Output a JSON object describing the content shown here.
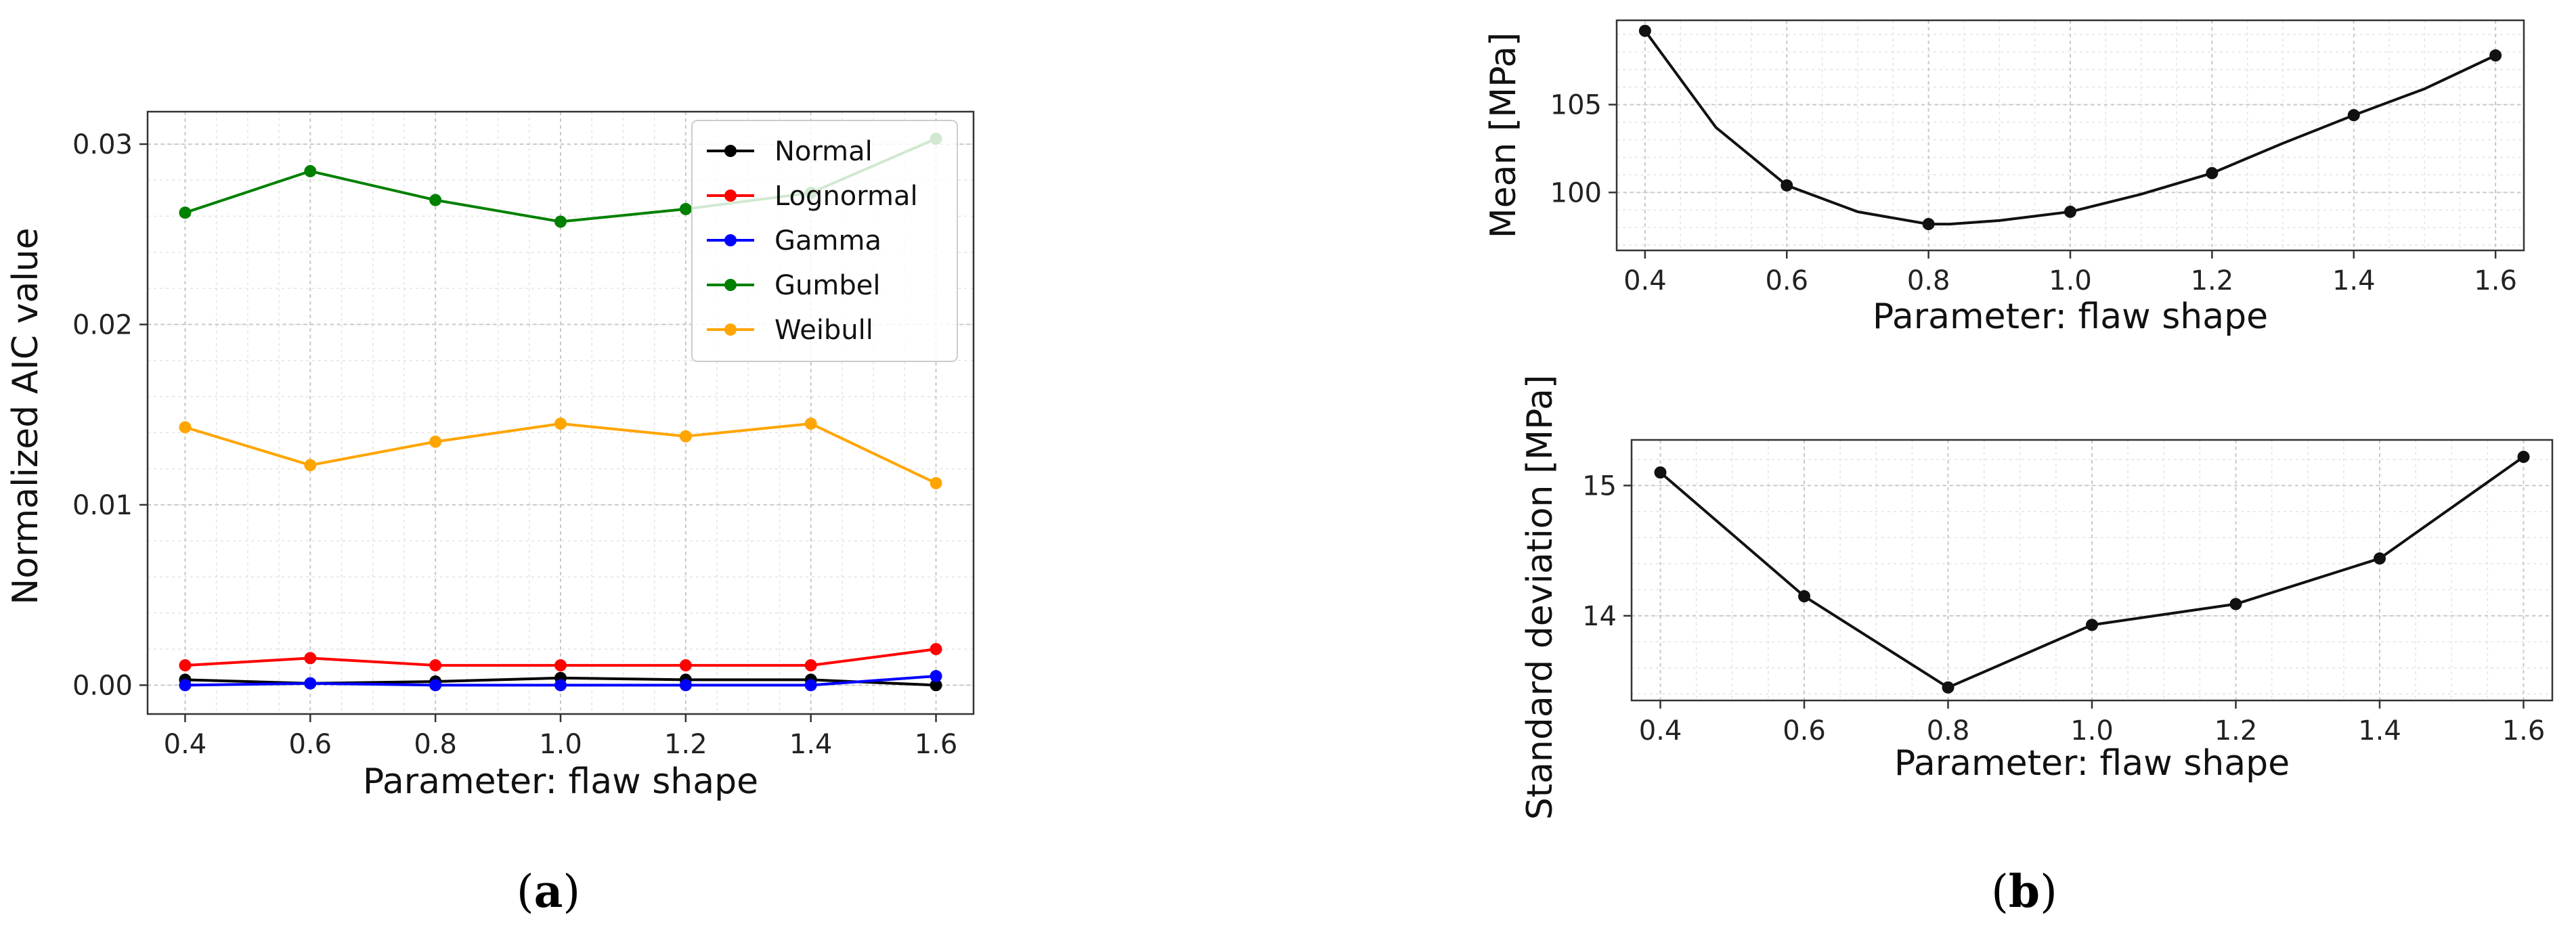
{
  "panel_labels": {
    "a": {
      "open": "(",
      "letter": "a",
      "close": ")"
    },
    "b": {
      "open": "(",
      "letter": "b",
      "close": ")"
    }
  },
  "chart_data": [
    {
      "id": "aic",
      "type": "line",
      "title": "",
      "xlabel": "Parameter: flaw shape",
      "ylabel": "Normalized AIC value",
      "x": [
        0.4,
        0.6,
        0.8,
        1.0,
        1.2,
        1.4,
        1.6
      ],
      "xlim": [
        0.34,
        1.66
      ],
      "ylim": [
        -0.0016,
        0.0318
      ],
      "xticks": [
        0.4,
        0.6,
        0.8,
        1.0,
        1.2,
        1.4,
        1.6
      ],
      "xtick_labels": [
        "0.4",
        "0.6",
        "0.8",
        "1.0",
        "1.2",
        "1.4",
        "1.6"
      ],
      "yticks": [
        0.0,
        0.01,
        0.02,
        0.03
      ],
      "ytick_labels": [
        "0.00",
        "0.01",
        "0.02",
        "0.03"
      ],
      "grid": true,
      "legend_position": "top-right",
      "series": [
        {
          "name": "Normal",
          "color": "#000000",
          "values": [
            0.0003,
            0.0001,
            0.0002,
            0.0004,
            0.0003,
            0.0003,
            0.0
          ]
        },
        {
          "name": "Lognormal",
          "color": "#ff0000",
          "values": [
            0.0011,
            0.0015,
            0.0011,
            0.0011,
            0.0011,
            0.0011,
            0.002
          ]
        },
        {
          "name": "Gamma",
          "color": "#0000ff",
          "values": [
            0.0,
            0.0001,
            0.0,
            0.0,
            0.0,
            0.0,
            0.0005
          ]
        },
        {
          "name": "Gumbel",
          "color": "#008000",
          "values": [
            0.0262,
            0.0285,
            0.0269,
            0.0257,
            0.0264,
            0.0273,
            0.0303
          ]
        },
        {
          "name": "Weibull",
          "color": "#ffa500",
          "values": [
            0.0143,
            0.0122,
            0.0135,
            0.0145,
            0.0138,
            0.0145,
            0.0112
          ]
        }
      ]
    },
    {
      "id": "mean",
      "type": "line",
      "title": "",
      "xlabel": "Parameter: flaw shape",
      "ylabel": "Mean [MPa]",
      "xlim": [
        0.36,
        1.64
      ],
      "ylim": [
        96.7,
        109.8
      ],
      "xticks": [
        0.4,
        0.6,
        0.8,
        1.0,
        1.2,
        1.4,
        1.6
      ],
      "xtick_labels": [
        "0.4",
        "0.6",
        "0.8",
        "1.0",
        "1.2",
        "1.4",
        "1.6"
      ],
      "yticks": [
        100,
        105
      ],
      "ytick_labels": [
        "100",
        "105"
      ],
      "grid": true,
      "series": [
        {
          "name": "Mean",
          "color": "#111111",
          "x": [
            0.4,
            0.5,
            0.6,
            0.7,
            0.8,
            0.83,
            0.9,
            1.0,
            1.1,
            1.2,
            1.3,
            1.4,
            1.5,
            1.6
          ],
          "values": [
            109.2,
            103.7,
            100.4,
            98.9,
            98.2,
            98.2,
            98.4,
            98.9,
            99.9,
            101.1,
            102.8,
            104.4,
            105.9,
            107.8
          ],
          "marker_x": [
            0.4,
            0.6,
            0.8,
            1.0,
            1.2,
            1.4,
            1.6
          ]
        }
      ]
    },
    {
      "id": "std",
      "type": "line",
      "title": "",
      "xlabel": "Parameter: flaw shape",
      "ylabel": "Standard deviation [MPa]",
      "xlim": [
        0.36,
        1.64
      ],
      "ylim": [
        13.35,
        15.35
      ],
      "xticks": [
        0.4,
        0.6,
        0.8,
        1.0,
        1.2,
        1.4,
        1.6
      ],
      "xtick_labels": [
        "0.4",
        "0.6",
        "0.8",
        "1.0",
        "1.2",
        "1.4",
        "1.6"
      ],
      "yticks": [
        14,
        15
      ],
      "ytick_labels": [
        "14",
        "15"
      ],
      "grid": true,
      "series": [
        {
          "name": "Standard deviation",
          "color": "#111111",
          "x": [
            0.4,
            0.6,
            0.8,
            1.0,
            1.2,
            1.4,
            1.6
          ],
          "values": [
            15.1,
            14.15,
            13.45,
            13.93,
            14.09,
            14.44,
            15.22
          ],
          "marker_x": [
            0.4,
            0.6,
            0.8,
            1.0,
            1.2,
            1.4,
            1.6
          ]
        }
      ]
    }
  ]
}
